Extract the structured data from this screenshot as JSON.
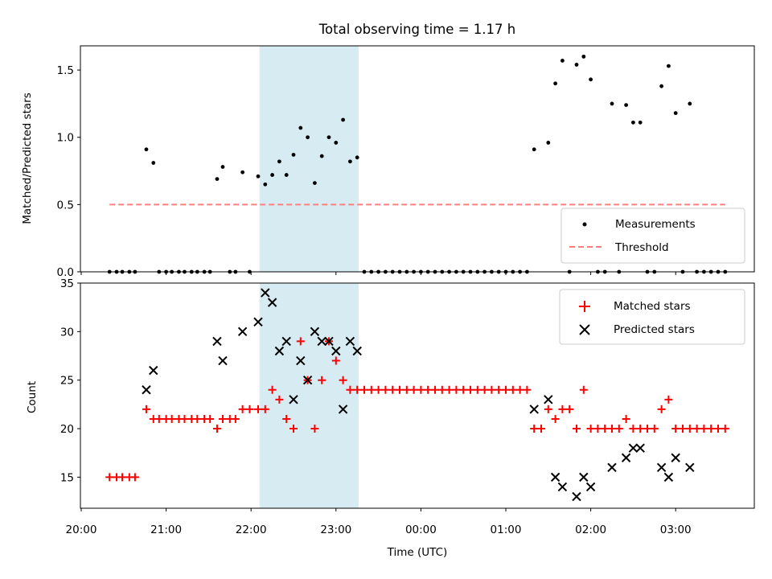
{
  "colors": {
    "measurement": "#000000",
    "threshold": "#ff7f7f",
    "matched": "#ff0000",
    "predicted": "#000000",
    "highlight": "#add8e6"
  },
  "chart_data": [
    {
      "type": "scatter",
      "title": "Total observing time = 1.17 h",
      "xlabel": "",
      "ylabel": "Matched/Predicted stars",
      "ylim": [
        0,
        1.68
      ],
      "yticks": [
        "0.0",
        "0.5",
        "1.0",
        "1.5"
      ],
      "xlim": [
        "20:00",
        "03:55"
      ],
      "x_tick_labels_shown": false,
      "shaded_region": [
        "22:06",
        "23:16"
      ],
      "legend": {
        "placement": "lower right",
        "entries": [
          "Measurements",
          "Threshold"
        ]
      },
      "series": [
        {
          "name": "Measurements",
          "points": [
            [
              "20:20",
              0
            ],
            [
              "20:25",
              0
            ],
            [
              "20:29",
              0
            ],
            [
              "20:34",
              0
            ],
            [
              "20:38",
              0
            ],
            [
              "20:46",
              0.91
            ],
            [
              "20:51",
              0.81
            ],
            [
              "20:55",
              0
            ],
            [
              "21:00",
              0
            ],
            [
              "21:04",
              0
            ],
            [
              "21:09",
              0
            ],
            [
              "21:13",
              0
            ],
            [
              "21:18",
              0
            ],
            [
              "21:22",
              0
            ],
            [
              "21:27",
              0
            ],
            [
              "21:31",
              0
            ],
            [
              "21:36",
              0.69
            ],
            [
              "21:40",
              0.78
            ],
            [
              "21:45",
              0
            ],
            [
              "21:49",
              0
            ],
            [
              "21:54",
              0.74
            ],
            [
              "21:59",
              0
            ],
            [
              "22:05",
              0.71
            ],
            [
              "22:10",
              0.65
            ],
            [
              "22:15",
              0.72
            ],
            [
              "22:20",
              0.82
            ],
            [
              "22:25",
              0.72
            ],
            [
              "22:30",
              0.87
            ],
            [
              "22:35",
              1.07
            ],
            [
              "22:40",
              1.0
            ],
            [
              "22:45",
              0.66
            ],
            [
              "22:50",
              0.86
            ],
            [
              "22:55",
              1.0
            ],
            [
              "23:00",
              0.96
            ],
            [
              "23:05",
              1.13
            ],
            [
              "23:10",
              0.82
            ],
            [
              "23:15",
              0.85
            ],
            [
              "23:20",
              0
            ],
            [
              "23:25",
              0
            ],
            [
              "23:30",
              0
            ],
            [
              "23:35",
              0
            ],
            [
              "23:40",
              0
            ],
            [
              "23:45",
              0
            ],
            [
              "23:50",
              0
            ],
            [
              "23:55",
              0
            ],
            [
              "00:00",
              0
            ],
            [
              "00:05",
              0
            ],
            [
              "00:10",
              0
            ],
            [
              "00:15",
              0
            ],
            [
              "00:20",
              0
            ],
            [
              "00:25",
              0
            ],
            [
              "00:30",
              0
            ],
            [
              "00:35",
              0
            ],
            [
              "00:40",
              0
            ],
            [
              "00:45",
              0
            ],
            [
              "00:50",
              0
            ],
            [
              "00:55",
              0
            ],
            [
              "01:00",
              0
            ],
            [
              "01:05",
              0
            ],
            [
              "01:10",
              0
            ],
            [
              "01:15",
              0
            ],
            [
              "01:20",
              0.91
            ],
            [
              "01:30",
              0.96
            ],
            [
              "01:35",
              1.4
            ],
            [
              "01:40",
              1.57
            ],
            [
              "01:45",
              0
            ],
            [
              "01:50",
              1.54
            ],
            [
              "01:55",
              1.6
            ],
            [
              "02:00",
              1.43
            ],
            [
              "02:05",
              0
            ],
            [
              "02:10",
              0
            ],
            [
              "02:15",
              1.25
            ],
            [
              "02:20",
              0
            ],
            [
              "02:25",
              1.24
            ],
            [
              "02:30",
              1.11
            ],
            [
              "02:35",
              1.11
            ],
            [
              "02:40",
              0
            ],
            [
              "02:45",
              0
            ],
            [
              "02:50",
              1.38
            ],
            [
              "02:55",
              1.53
            ],
            [
              "03:00",
              1.18
            ],
            [
              "03:05",
              0
            ],
            [
              "03:10",
              1.25
            ],
            [
              "03:15",
              0
            ],
            [
              "03:20",
              0
            ],
            [
              "03:25",
              0
            ],
            [
              "03:30",
              0
            ],
            [
              "03:35",
              0
            ]
          ]
        },
        {
          "name": "Threshold",
          "y": 0.5,
          "x_range": [
            "20:20",
            "03:35"
          ]
        }
      ]
    },
    {
      "type": "scatter",
      "title": "",
      "xlabel": "Time (UTC)",
      "ylabel": "Count",
      "ylim": [
        11.8,
        35
      ],
      "yticks": [
        "15",
        "20",
        "25",
        "30",
        "35"
      ],
      "xlim": [
        "20:00",
        "03:55"
      ],
      "x_tick_labels": [
        "20:00",
        "21:00",
        "22:00",
        "23:00",
        "00:00",
        "01:00",
        "02:00",
        "03:00"
      ],
      "shaded_region": [
        "22:06",
        "23:16"
      ],
      "legend": {
        "placement": "upper right",
        "entries": [
          "Matched stars",
          "Predicted stars"
        ]
      },
      "series": [
        {
          "name": "Matched stars",
          "points": [
            [
              "20:20",
              15
            ],
            [
              "20:25",
              15
            ],
            [
              "20:29",
              15
            ],
            [
              "20:34",
              15
            ],
            [
              "20:38",
              15
            ],
            [
              "20:46",
              22
            ],
            [
              "20:51",
              21
            ],
            [
              "20:55",
              21
            ],
            [
              "21:00",
              21
            ],
            [
              "21:04",
              21
            ],
            [
              "21:09",
              21
            ],
            [
              "21:13",
              21
            ],
            [
              "21:18",
              21
            ],
            [
              "21:22",
              21
            ],
            [
              "21:27",
              21
            ],
            [
              "21:31",
              21
            ],
            [
              "21:36",
              20
            ],
            [
              "21:40",
              21
            ],
            [
              "21:45",
              21
            ],
            [
              "21:49",
              21
            ],
            [
              "21:54",
              22
            ],
            [
              "21:59",
              22
            ],
            [
              "22:05",
              22
            ],
            [
              "22:10",
              22
            ],
            [
              "22:15",
              24
            ],
            [
              "22:20",
              23
            ],
            [
              "22:25",
              21
            ],
            [
              "22:30",
              20
            ],
            [
              "22:35",
              29
            ],
            [
              "22:40",
              25
            ],
            [
              "22:45",
              20
            ],
            [
              "22:50",
              25
            ],
            [
              "22:55",
              29
            ],
            [
              "23:00",
              27
            ],
            [
              "23:05",
              25
            ],
            [
              "23:10",
              24
            ],
            [
              "23:15",
              24
            ],
            [
              "23:20",
              24
            ],
            [
              "23:25",
              24
            ],
            [
              "23:30",
              24
            ],
            [
              "23:35",
              24
            ],
            [
              "23:40",
              24
            ],
            [
              "23:45",
              24
            ],
            [
              "23:50",
              24
            ],
            [
              "23:55",
              24
            ],
            [
              "00:00",
              24
            ],
            [
              "00:05",
              24
            ],
            [
              "00:10",
              24
            ],
            [
              "00:15",
              24
            ],
            [
              "00:20",
              24
            ],
            [
              "00:25",
              24
            ],
            [
              "00:30",
              24
            ],
            [
              "00:35",
              24
            ],
            [
              "00:40",
              24
            ],
            [
              "00:45",
              24
            ],
            [
              "00:50",
              24
            ],
            [
              "00:55",
              24
            ],
            [
              "01:00",
              24
            ],
            [
              "01:05",
              24
            ],
            [
              "01:10",
              24
            ],
            [
              "01:15",
              24
            ],
            [
              "01:20",
              20
            ],
            [
              "01:25",
              20
            ],
            [
              "01:30",
              22
            ],
            [
              "01:35",
              21
            ],
            [
              "01:40",
              22
            ],
            [
              "01:45",
              22
            ],
            [
              "01:50",
              20
            ],
            [
              "01:55",
              24
            ],
            [
              "02:00",
              20
            ],
            [
              "02:05",
              20
            ],
            [
              "02:10",
              20
            ],
            [
              "02:15",
              20
            ],
            [
              "02:20",
              20
            ],
            [
              "02:25",
              21
            ],
            [
              "02:30",
              20
            ],
            [
              "02:35",
              20
            ],
            [
              "02:40",
              20
            ],
            [
              "02:45",
              20
            ],
            [
              "02:50",
              22
            ],
            [
              "02:55",
              23
            ],
            [
              "03:00",
              20
            ],
            [
              "03:05",
              20
            ],
            [
              "03:10",
              20
            ],
            [
              "03:15",
              20
            ],
            [
              "03:20",
              20
            ],
            [
              "03:25",
              20
            ],
            [
              "03:30",
              20
            ],
            [
              "03:35",
              20
            ]
          ]
        },
        {
          "name": "Predicted stars",
          "points": [
            [
              "20:46",
              24
            ],
            [
              "20:51",
              26
            ],
            [
              "21:36",
              29
            ],
            [
              "21:40",
              27
            ],
            [
              "21:54",
              30
            ],
            [
              "22:05",
              31
            ],
            [
              "22:10",
              34
            ],
            [
              "22:15",
              33
            ],
            [
              "22:20",
              28
            ],
            [
              "22:25",
              29
            ],
            [
              "22:30",
              23
            ],
            [
              "22:35",
              27
            ],
            [
              "22:40",
              25
            ],
            [
              "22:45",
              30
            ],
            [
              "22:50",
              29
            ],
            [
              "22:55",
              29
            ],
            [
              "23:00",
              28
            ],
            [
              "23:05",
              22
            ],
            [
              "23:10",
              29
            ],
            [
              "23:15",
              28
            ],
            [
              "01:20",
              22
            ],
            [
              "01:30",
              23
            ],
            [
              "01:35",
              15
            ],
            [
              "01:40",
              14
            ],
            [
              "01:50",
              13
            ],
            [
              "01:55",
              15
            ],
            [
              "02:00",
              14
            ],
            [
              "02:15",
              16
            ],
            [
              "02:25",
              17
            ],
            [
              "02:30",
              18
            ],
            [
              "02:35",
              18
            ],
            [
              "02:50",
              16
            ],
            [
              "02:55",
              15
            ],
            [
              "03:00",
              17
            ],
            [
              "03:10",
              16
            ]
          ]
        }
      ]
    }
  ]
}
